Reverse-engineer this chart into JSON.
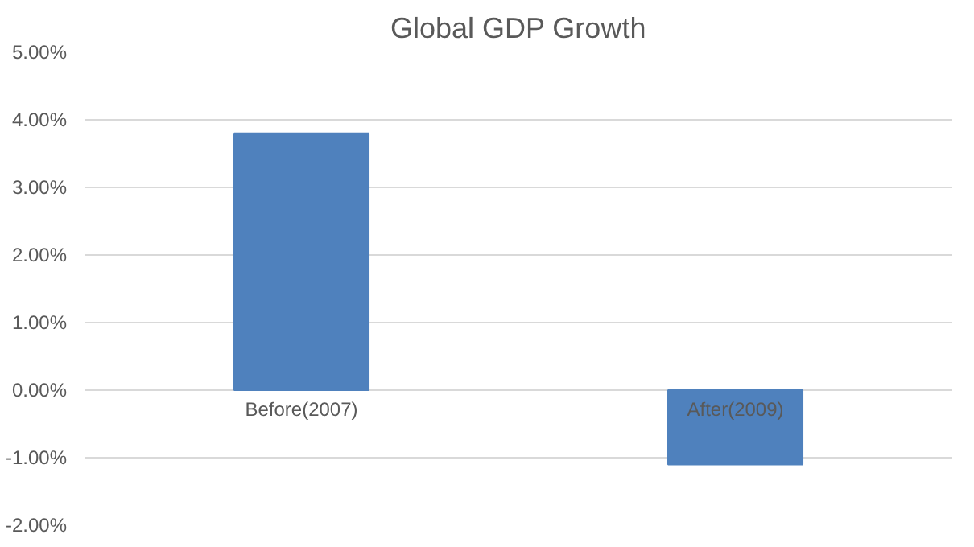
{
  "chart_data": {
    "type": "bar",
    "title": "Global GDP Growth",
    "categories": [
      "Before(2007)",
      "After(2009)"
    ],
    "values": [
      3.8,
      -1.1
    ],
    "color": "#4f81bd",
    "ylim": [
      -2,
      5
    ],
    "yticks": [
      {
        "value": -2,
        "label": "-2.00%"
      },
      {
        "value": -1,
        "label": "-1.00%"
      },
      {
        "value": 0,
        "label": "0.00%"
      },
      {
        "value": 1,
        "label": "1.00%"
      },
      {
        "value": 2,
        "label": "2.00%"
      },
      {
        "value": 3,
        "label": "3.00%"
      },
      {
        "value": 4,
        "label": "4.00%"
      },
      {
        "value": 5,
        "label": "5.00%"
      }
    ],
    "grid": "y"
  }
}
